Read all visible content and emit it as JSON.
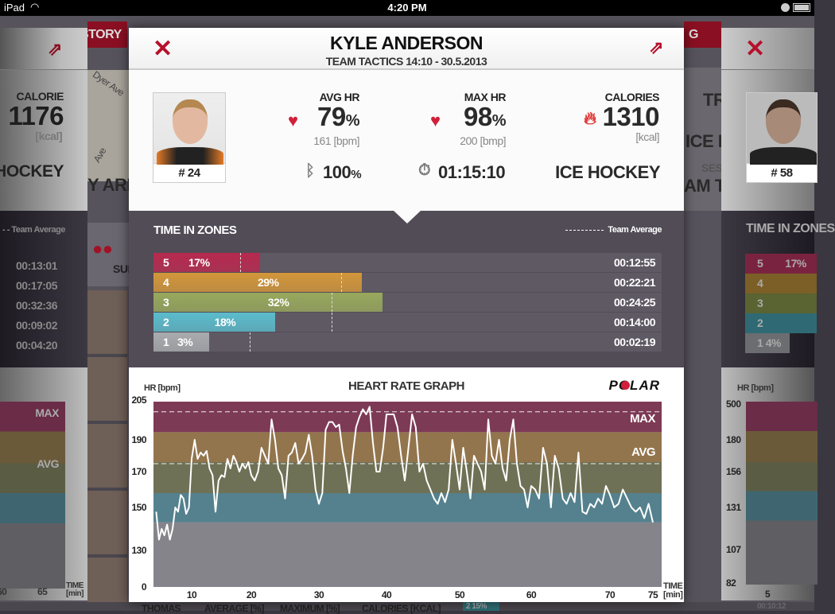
{
  "status_bar": {
    "device": "iPad",
    "time": "4:20 PM"
  },
  "background": {
    "left_panel": {
      "calorie_label": "CALORIE",
      "calorie_value": "1176",
      "calorie_unit": "[kcal]",
      "sport": "ICE HOCKEY",
      "team_average": "- - Team Average",
      "times": [
        "00:13:01",
        "00:17:05",
        "00:32:36",
        "00:09:02",
        "00:04:20"
      ],
      "max_label": "MAX",
      "avg_label": "AVG",
      "x_ticks": [
        "60",
        "65"
      ],
      "time_label": "TIME",
      "time_unit": "[min]"
    },
    "history_button": "HISTORY",
    "map_street": "Dyer Ave",
    "map_street2": "Ave",
    "arena": "Y AREN",
    "summary": "SUM",
    "right_tab": "G",
    "right_texts": [
      "TR",
      "ICE H",
      "SES",
      "AM T"
    ],
    "right_panel": {
      "jersey": "# 58",
      "zones_title": "TIME IN ZONES",
      "zones": [
        {
          "zone": "5",
          "pct": "17%"
        },
        {
          "zone": "4",
          "pct": ""
        },
        {
          "zone": "3",
          "pct": ""
        },
        {
          "zone": "2",
          "pct": ""
        },
        {
          "zone": "1",
          "pct": "4%"
        }
      ],
      "y_label": "HR [bpm]",
      "y_ticks": [
        "500",
        "180",
        "156",
        "131",
        "107",
        "82"
      ],
      "x_tick": "5",
      "footer_time": "00:10:12"
    },
    "bottom_headers": [
      "THOMAS",
      "AVERAGE [%]",
      "MAXIMUM [%]",
      "CALORIES [KCAL]"
    ],
    "bottom_badge": "2  15%"
  },
  "modal": {
    "name": "KYLE ANDERSON",
    "session": "TEAM TACTICS 14:10 - 30.5.2013",
    "jersey": "# 24",
    "avg_hr": {
      "label": "AVG HR",
      "value": "79",
      "pct": "%",
      "sub": "161 [bpm]"
    },
    "max_hr": {
      "label": "MAX HR",
      "value": "98",
      "pct": "%",
      "sub": "200 [bmp]"
    },
    "calories": {
      "label": "CALORIES",
      "value": "1310",
      "sub": "[kcal]"
    },
    "battery": {
      "value": "100",
      "pct": "%"
    },
    "duration": "01:15:10",
    "sport": "ICE HOCKEY",
    "icons": {
      "close": "close-icon",
      "share": "share-icon",
      "heart": "heart-icon",
      "flame": "flame-icon",
      "bluetooth": "bluetooth-icon",
      "stopwatch": "stopwatch-icon"
    },
    "accent": "#b5102b",
    "zones": {
      "title": "TIME IN ZONES",
      "legend": "Team Average",
      "rows": [
        {
          "zone": "5",
          "pct": "17%",
          "time": "00:12:55",
          "fill": 21,
          "team_avg": 17,
          "color": "#b8294f"
        },
        {
          "zone": "4",
          "pct": "29%",
          "time": "00:22:21",
          "fill": 41,
          "team_avg": 37,
          "color": "#d3973a"
        },
        {
          "zone": "3",
          "pct": "32%",
          "time": "00:24:25",
          "fill": 45,
          "team_avg": 35,
          "color": "#98a95c"
        },
        {
          "zone": "2",
          "pct": "18%",
          "time": "00:14:00",
          "fill": 24,
          "team_avg": 35,
          "color": "#5bbccc"
        },
        {
          "zone": "1",
          "pct": "3%",
          "time": "00:02:19",
          "fill": 11,
          "team_avg": 19,
          "color": "#a9acae"
        }
      ]
    }
  },
  "chart_data": {
    "type": "line",
    "title": "HEART RATE GRAPH",
    "ylabel": "HR [bpm]",
    "xlabel": "TIME",
    "xunit": "[min]",
    "brand": "POLAR",
    "y_ticks": [
      205,
      190,
      170,
      150,
      130,
      0
    ],
    "x_ticks": [
      10,
      20,
      30,
      40,
      50,
      60,
      70,
      75
    ],
    "zone_bands": [
      {
        "from": 193,
        "to": 205,
        "color": "#7d3a55"
      },
      {
        "from": 176,
        "to": 193,
        "color": "#93754d"
      },
      {
        "from": 158,
        "to": 176,
        "color": "#6f7156"
      },
      {
        "from": 143,
        "to": 158,
        "color": "#55818e"
      },
      {
        "from": 0,
        "to": 143,
        "color": "#85848a"
      }
    ],
    "reference_lines": [
      {
        "label": "MAX",
        "value": 201
      },
      {
        "label": "AVG",
        "value": 175
      }
    ],
    "series": [
      {
        "x": [
          3.5,
          4,
          4.5,
          5,
          5.5,
          6,
          6.5,
          7,
          7.5,
          8,
          8.5,
          9,
          9.5,
          10,
          10.5,
          11,
          11.5,
          12,
          12.5,
          13,
          13.5,
          14,
          14.5,
          15,
          15.5,
          16,
          16.5,
          17,
          17.5,
          18,
          18.5,
          19,
          19.5,
          20,
          20.5,
          21,
          21.5,
          22,
          22.5,
          23,
          23.5,
          24,
          24.5,
          25,
          25.5,
          26,
          26.5,
          27,
          27.5,
          28,
          28.5,
          29,
          29.5,
          30,
          30.5,
          31,
          31.5,
          32,
          32.5,
          33,
          33.5,
          34,
          34.5,
          35,
          35.5,
          36,
          36.5,
          37,
          37.5,
          38,
          38.5,
          39,
          39.5,
          40,
          40.5,
          41,
          41.5,
          42,
          42.5,
          43,
          43.5,
          44,
          44.5,
          45,
          45.5,
          46,
          46.5,
          47,
          47.5,
          48,
          48.5,
          49,
          49.5,
          50,
          50.5,
          51,
          51.5,
          52,
          52.5,
          53,
          53.5,
          54,
          54.5,
          55,
          55.5,
          56,
          56.5,
          57,
          57.5,
          58,
          58.5,
          59,
          59.5,
          60,
          60.5,
          61,
          61.5,
          62,
          62.5,
          63,
          63.5,
          64,
          64.5,
          65,
          65.5,
          66,
          66.5,
          67,
          67.5,
          68,
          68.5,
          69,
          69.5,
          70,
          70.5,
          71,
          71.5,
          72,
          72.5,
          73,
          73.5,
          74,
          74.5,
          75
        ],
        "y": [
          148,
          135,
          140,
          137,
          142,
          135,
          140,
          150,
          148,
          157,
          155,
          147,
          150,
          178,
          190,
          178,
          182,
          180,
          183,
          172,
          168,
          148,
          165,
          168,
          167,
          178,
          172,
          180,
          176,
          170,
          175,
          172,
          176,
          168,
          165,
          170,
          185,
          180,
          175,
          198,
          190,
          172,
          168,
          155,
          180,
          182,
          188,
          175,
          178,
          182,
          192,
          180,
          160,
          152,
          158,
          194,
          197,
          197,
          195,
          196,
          183,
          172,
          158,
          180,
          195,
          199,
          202,
          200,
          203,
          188,
          170,
          170,
          185,
          200,
          200,
          200,
          195,
          180,
          165,
          185,
          200,
          195,
          170,
          175,
          165,
          160,
          155,
          152,
          158,
          153,
          160,
          190,
          175,
          160,
          185,
          170,
          155,
          180,
          175,
          170,
          160,
          198,
          180,
          175,
          190,
          172,
          165,
          190,
          198,
          175,
          162,
          160,
          150,
          162,
          160,
          155,
          185,
          175,
          150,
          180,
          172,
          155,
          152,
          158,
          153,
          182,
          148,
          147,
          152,
          150,
          155,
          152,
          162,
          157,
          150,
          152,
          160,
          155,
          150,
          148,
          150,
          145,
          152,
          143
        ]
      }
    ]
  }
}
